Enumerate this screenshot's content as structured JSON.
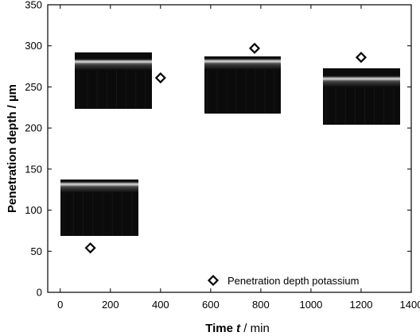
{
  "chart_data": {
    "type": "scatter",
    "xlabel": {
      "prefix": "Time ",
      "var": "t",
      "suffix": " / min"
    },
    "ylabel": "Penetration depth / µm",
    "xlim": [
      -50,
      1400
    ],
    "ylim": [
      0,
      350
    ],
    "xticks": [
      0,
      200,
      400,
      600,
      800,
      1000,
      1200,
      1400
    ],
    "yticks": [
      0,
      50,
      100,
      150,
      200,
      250,
      300,
      350
    ],
    "series": [
      {
        "name": "Penetration depth potassium",
        "marker": "diamond-open",
        "x": [
          120,
          400,
          775,
          1200
        ],
        "y": [
          54,
          261,
          297,
          286
        ]
      }
    ],
    "legend_position": "bottom-right",
    "grid": false,
    "insets": [
      {
        "kind": "microscopy-image",
        "near_x": 120
      },
      {
        "kind": "microscopy-image",
        "near_x": 400
      },
      {
        "kind": "microscopy-image",
        "near_x": 775
      },
      {
        "kind": "microscopy-image",
        "near_x": 1200
      }
    ]
  },
  "colors": {
    "axis": "#000000",
    "marker": "#000000",
    "inset_bg": "#0a0a0a"
  }
}
